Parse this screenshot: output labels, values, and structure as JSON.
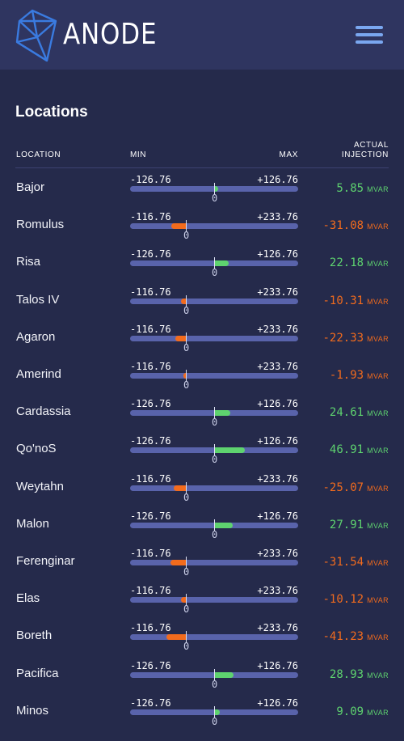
{
  "app": {
    "brand": "ANODE"
  },
  "page": {
    "title": "Locations"
  },
  "columns": {
    "location": "LOCATION",
    "min": "MIN",
    "max": "MAX",
    "actual_line1": "ACTUAL",
    "actual_line2": "INJECTION"
  },
  "unit": "MVAR",
  "colors": {
    "positive": "#5ed36f",
    "negative": "#f26b1d",
    "track": "#5963ab",
    "background": "#252a4b",
    "header": "#2f3560",
    "logo": "#3a7be0"
  },
  "locations": [
    {
      "name": "Bajor",
      "min": "-126.76",
      "max": "+126.76",
      "min_num": -126.76,
      "max_num": 126.76,
      "zero": "0",
      "value": 5.85,
      "value_text": "5.85"
    },
    {
      "name": "Romulus",
      "min": "-116.76",
      "max": "+233.76",
      "min_num": -116.76,
      "max_num": 233.76,
      "zero": "0",
      "value": -31.08,
      "value_text": "-31.08"
    },
    {
      "name": "Risa",
      "min": "-126.76",
      "max": "+126.76",
      "min_num": -126.76,
      "max_num": 126.76,
      "zero": "0",
      "value": 22.18,
      "value_text": "22.18"
    },
    {
      "name": "Talos IV",
      "min": "-116.76",
      "max": "+233.76",
      "min_num": -116.76,
      "max_num": 233.76,
      "zero": "0",
      "value": -10.31,
      "value_text": "-10.31"
    },
    {
      "name": "Agaron",
      "min": "-116.76",
      "max": "+233.76",
      "min_num": -116.76,
      "max_num": 233.76,
      "zero": "0",
      "value": -22.33,
      "value_text": "-22.33"
    },
    {
      "name": "Amerind",
      "min": "-116.76",
      "max": "+233.76",
      "min_num": -116.76,
      "max_num": 233.76,
      "zero": "0",
      "value": -1.93,
      "value_text": "-1.93"
    },
    {
      "name": "Cardassia",
      "min": "-126.76",
      "max": "+126.76",
      "min_num": -126.76,
      "max_num": 126.76,
      "zero": "0",
      "value": 24.61,
      "value_text": "24.61"
    },
    {
      "name": "Qo'noS",
      "min": "-126.76",
      "max": "+126.76",
      "min_num": -126.76,
      "max_num": 126.76,
      "zero": "0",
      "value": 46.91,
      "value_text": "46.91"
    },
    {
      "name": "Weytahn",
      "min": "-116.76",
      "max": "+233.76",
      "min_num": -116.76,
      "max_num": 233.76,
      "zero": "0",
      "value": -25.07,
      "value_text": "-25.07"
    },
    {
      "name": "Malon",
      "min": "-126.76",
      "max": "+126.76",
      "min_num": -126.76,
      "max_num": 126.76,
      "zero": "0",
      "value": 27.91,
      "value_text": "27.91"
    },
    {
      "name": "Ferenginar",
      "min": "-116.76",
      "max": "+233.76",
      "min_num": -116.76,
      "max_num": 233.76,
      "zero": "0",
      "value": -31.54,
      "value_text": "-31.54"
    },
    {
      "name": "Elas",
      "min": "-116.76",
      "max": "+233.76",
      "min_num": -116.76,
      "max_num": 233.76,
      "zero": "0",
      "value": -10.12,
      "value_text": "-10.12"
    },
    {
      "name": "Boreth",
      "min": "-116.76",
      "max": "+233.76",
      "min_num": -116.76,
      "max_num": 233.76,
      "zero": "0",
      "value": -41.23,
      "value_text": "-41.23"
    },
    {
      "name": "Pacifica",
      "min": "-126.76",
      "max": "+126.76",
      "min_num": -126.76,
      "max_num": 126.76,
      "zero": "0",
      "value": 28.93,
      "value_text": "28.93"
    },
    {
      "name": "Minos",
      "min": "-126.76",
      "max": "+126.76",
      "min_num": -126.76,
      "max_num": 126.76,
      "zero": "0",
      "value": 9.09,
      "value_text": "9.09"
    }
  ]
}
